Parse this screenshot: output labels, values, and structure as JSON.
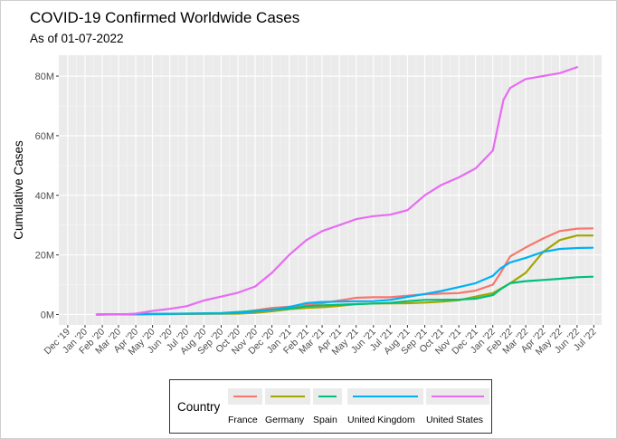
{
  "chart_data": {
    "type": "line",
    "title": "COVID-19 Confirmed Worldwide Cases",
    "subtitle": "As of 01-07-2022",
    "xlabel": "",
    "ylabel": "Cumulative Cases",
    "x_tick_labels": [
      "Dec '19",
      "Jan '20",
      "Feb '20",
      "Mar '20",
      "Apr '20",
      "May '20",
      "Jun '20",
      "Jul '20",
      "Aug '20",
      "Sep '20",
      "Oct '20",
      "Nov '20",
      "Dec '20",
      "Jan '21",
      "Feb '21",
      "Mar '21",
      "Apr '21",
      "May '21",
      "Jun '21",
      "Jul '21",
      "Aug '21",
      "Sep '21",
      "Oct '21",
      "Nov '21",
      "Dec '21",
      "Jan '22",
      "Feb '22",
      "Mar '22",
      "Apr '22",
      "May '22",
      "Jun '22",
      "Jul '22"
    ],
    "y_tick_labels": [
      "0M",
      "20M",
      "40M",
      "60M",
      "80M"
    ],
    "y_ticks": [
      0,
      20,
      40,
      60,
      80
    ],
    "ylim": [
      -3.5,
      87
    ],
    "xlim": [
      "2019-11-15",
      "2022-07-15"
    ],
    "y_unit": "millions",
    "grid": true,
    "legend": {
      "title": "Country",
      "position": "bottom"
    },
    "series": [
      {
        "name": "France",
        "color": "#F8766D",
        "points": [
          [
            "2020-01-22",
            0
          ],
          [
            "2020-06-01",
            0.15
          ],
          [
            "2020-09-01",
            0.35
          ],
          [
            "2020-10-01",
            0.6
          ],
          [
            "2020-11-01",
            1.4
          ],
          [
            "2020-12-01",
            2.2
          ],
          [
            "2021-01-01",
            2.6
          ],
          [
            "2021-02-01",
            3.2
          ],
          [
            "2021-03-01",
            3.8
          ],
          [
            "2021-04-01",
            4.7
          ],
          [
            "2021-05-01",
            5.6
          ],
          [
            "2021-06-01",
            5.8
          ],
          [
            "2021-07-01",
            5.8
          ],
          [
            "2021-08-01",
            6.3
          ],
          [
            "2021-09-01",
            6.8
          ],
          [
            "2021-10-01",
            7.0
          ],
          [
            "2021-11-01",
            7.2
          ],
          [
            "2021-12-01",
            8.0
          ],
          [
            "2022-01-01",
            10.0
          ],
          [
            "2022-01-15",
            14.0
          ],
          [
            "2022-02-01",
            19.5
          ],
          [
            "2022-03-01",
            22.5
          ],
          [
            "2022-04-01",
            25.5
          ],
          [
            "2022-05-01",
            28.0
          ],
          [
            "2022-06-01",
            28.8
          ],
          [
            "2022-06-29",
            28.9
          ]
        ]
      },
      {
        "name": "Germany",
        "color": "#A3A500",
        "points": [
          [
            "2020-01-22",
            0
          ],
          [
            "2020-06-01",
            0.18
          ],
          [
            "2020-09-01",
            0.25
          ],
          [
            "2020-10-01",
            0.3
          ],
          [
            "2020-11-01",
            0.55
          ],
          [
            "2020-12-01",
            1.1
          ],
          [
            "2021-01-01",
            1.8
          ],
          [
            "2021-02-01",
            2.2
          ],
          [
            "2021-03-01",
            2.45
          ],
          [
            "2021-04-01",
            2.9
          ],
          [
            "2021-05-01",
            3.5
          ],
          [
            "2021-06-01",
            3.7
          ],
          [
            "2021-07-01",
            3.73
          ],
          [
            "2021-08-01",
            3.8
          ],
          [
            "2021-09-01",
            4.0
          ],
          [
            "2021-10-01",
            4.3
          ],
          [
            "2021-11-01",
            4.8
          ],
          [
            "2021-12-01",
            6.0
          ],
          [
            "2022-01-01",
            7.2
          ],
          [
            "2022-02-01",
            10.5
          ],
          [
            "2022-03-01",
            14.0
          ],
          [
            "2022-04-01",
            21.0
          ],
          [
            "2022-05-01",
            25.0
          ],
          [
            "2022-06-01",
            26.5
          ],
          [
            "2022-06-29",
            26.5
          ]
        ]
      },
      {
        "name": "Spain",
        "color": "#00BF7D",
        "points": [
          [
            "2020-01-22",
            0
          ],
          [
            "2020-04-01",
            0.1
          ],
          [
            "2020-06-01",
            0.24
          ],
          [
            "2020-09-01",
            0.5
          ],
          [
            "2020-10-01",
            0.85
          ],
          [
            "2020-11-01",
            1.2
          ],
          [
            "2020-12-01",
            1.65
          ],
          [
            "2021-01-01",
            1.95
          ],
          [
            "2021-02-01",
            2.8
          ],
          [
            "2021-03-01",
            3.1
          ],
          [
            "2021-04-01",
            3.3
          ],
          [
            "2021-05-01",
            3.5
          ],
          [
            "2021-06-01",
            3.7
          ],
          [
            "2021-07-01",
            3.9
          ],
          [
            "2021-08-01",
            4.5
          ],
          [
            "2021-09-01",
            4.9
          ],
          [
            "2021-10-01",
            4.95
          ],
          [
            "2021-11-01",
            5.0
          ],
          [
            "2021-12-01",
            5.3
          ],
          [
            "2022-01-01",
            6.5
          ],
          [
            "2022-01-15",
            8.5
          ],
          [
            "2022-02-01",
            10.5
          ],
          [
            "2022-03-01",
            11.2
          ],
          [
            "2022-04-01",
            11.6
          ],
          [
            "2022-05-01",
            12.0
          ],
          [
            "2022-06-01",
            12.5
          ],
          [
            "2022-06-29",
            12.7
          ]
        ]
      },
      {
        "name": "United Kingdom",
        "color": "#00B0F6",
        "points": [
          [
            "2020-01-22",
            0
          ],
          [
            "2020-06-01",
            0.28
          ],
          [
            "2020-09-01",
            0.35
          ],
          [
            "2020-10-01",
            0.5
          ],
          [
            "2020-11-01",
            1.0
          ],
          [
            "2020-12-01",
            1.6
          ],
          [
            "2021-01-01",
            2.5
          ],
          [
            "2021-02-01",
            3.85
          ],
          [
            "2021-03-01",
            4.2
          ],
          [
            "2021-04-01",
            4.35
          ],
          [
            "2021-05-01",
            4.45
          ],
          [
            "2021-06-01",
            4.5
          ],
          [
            "2021-07-01",
            4.9
          ],
          [
            "2021-08-01",
            5.9
          ],
          [
            "2021-09-01",
            6.9
          ],
          [
            "2021-10-01",
            7.9
          ],
          [
            "2021-11-01",
            9.2
          ],
          [
            "2021-12-01",
            10.5
          ],
          [
            "2022-01-01",
            13.0
          ],
          [
            "2022-01-15",
            15.5
          ],
          [
            "2022-02-01",
            17.5
          ],
          [
            "2022-03-01",
            19.0
          ],
          [
            "2022-04-01",
            21.0
          ],
          [
            "2022-05-01",
            22.0
          ],
          [
            "2022-06-01",
            22.3
          ],
          [
            "2022-06-29",
            22.4
          ]
        ]
      },
      {
        "name": "United States",
        "color": "#E76BF3",
        "points": [
          [
            "2020-01-22",
            0
          ],
          [
            "2020-03-15",
            0.1
          ],
          [
            "2020-04-01",
            0.3
          ],
          [
            "2020-05-01",
            1.2
          ],
          [
            "2020-06-01",
            1.9
          ],
          [
            "2020-07-01",
            2.8
          ],
          [
            "2020-08-01",
            4.7
          ],
          [
            "2020-09-01",
            6.0
          ],
          [
            "2020-10-01",
            7.3
          ],
          [
            "2020-11-01",
            9.4
          ],
          [
            "2020-12-01",
            14.0
          ],
          [
            "2021-01-01",
            20.0
          ],
          [
            "2021-02-01",
            25.0
          ],
          [
            "2021-03-01",
            28.0
          ],
          [
            "2021-04-01",
            30.0
          ],
          [
            "2021-05-01",
            32.0
          ],
          [
            "2021-06-01",
            33.0
          ],
          [
            "2021-07-01",
            33.5
          ],
          [
            "2021-08-01",
            35.0
          ],
          [
            "2021-09-01",
            40.0
          ],
          [
            "2021-10-01",
            43.5
          ],
          [
            "2021-11-01",
            46.0
          ],
          [
            "2021-12-01",
            49.0
          ],
          [
            "2022-01-01",
            55.0
          ],
          [
            "2022-01-10",
            63.0
          ],
          [
            "2022-01-20",
            72.0
          ],
          [
            "2022-02-01",
            76.0
          ],
          [
            "2022-03-01",
            79.0
          ],
          [
            "2022-04-01",
            80.0
          ],
          [
            "2022-05-01",
            81.0
          ],
          [
            "2022-06-01",
            83.0
          ]
        ]
      }
    ]
  }
}
